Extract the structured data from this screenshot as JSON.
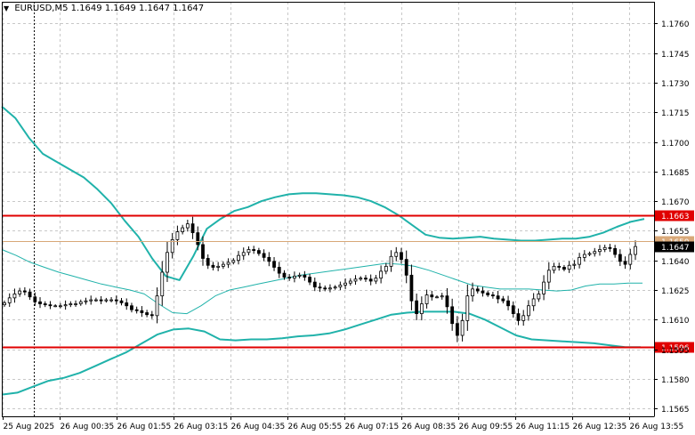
{
  "header": {
    "symbol": "EURUSD,M5",
    "ohlc": "1.1649 1.1649 1.1647 1.1647"
  },
  "colors": {
    "candle": "#000000",
    "bollinger": "#20b2aa",
    "level_line": "#e00000",
    "bid_line": "#d8a878",
    "grid": "#c8c8c8"
  },
  "chart_data": {
    "type": "candlestick",
    "symbol": "EURUSD",
    "timeframe": "M5",
    "y_ticks": [
      "1.1760",
      "1.1745",
      "1.1730",
      "1.1715",
      "1.1700",
      "1.1685",
      "1.1670",
      "1.1655",
      "1.1640",
      "1.1625",
      "1.1610",
      "1.1595",
      "1.1580",
      "1.1565"
    ],
    "ylim": [
      1.1561,
      1.1771
    ],
    "x_ticks": [
      "25 Aug 2025",
      "26 Aug 00:35",
      "26 Aug 01:55",
      "26 Aug 03:15",
      "26 Aug 04:35",
      "26 Aug 05:55",
      "26 Aug 07:15",
      "26 Aug 08:35",
      "26 Aug 09:55",
      "26 Aug 11:15",
      "26 Aug 12:35",
      "26 Aug 13:55"
    ],
    "grid": true,
    "current_price": {
      "value": 1.1647,
      "label": "1.1647"
    },
    "bid_line": {
      "value": 1.165,
      "label": "1.1650"
    },
    "horizontal_levels": [
      {
        "value": 1.1663,
        "label": "1.1663"
      },
      {
        "value": 1.1596,
        "label": "1.1596"
      }
    ],
    "candles": [
      1.16185,
      1.1621,
      1.1623,
      1.16245,
      1.1624,
      1.16215,
      1.1619,
      1.1618,
      1.16175,
      1.1617,
      1.1617,
      1.1617,
      1.16175,
      1.1618,
      1.1618,
      1.1619,
      1.16195,
      1.162,
      1.162,
      1.16195,
      1.162,
      1.162,
      1.16195,
      1.16185,
      1.1617,
      1.1615,
      1.16145,
      1.16135,
      1.16125,
      1.1612,
      1.1622,
      1.1634,
      1.1644,
      1.16505,
      1.16545,
      1.16565,
      1.16585,
      1.1654,
      1.1648,
      1.1641,
      1.16375,
      1.16365,
      1.1637,
      1.1638,
      1.1639,
      1.164,
      1.16425,
      1.1644,
      1.16455,
      1.1645,
      1.16435,
      1.16415,
      1.16395,
      1.16365,
      1.16335,
      1.16315,
      1.1631,
      1.1632,
      1.16325,
      1.16315,
      1.1629,
      1.16265,
      1.1626,
      1.16255,
      1.1626,
      1.16265,
      1.16275,
      1.16285,
      1.16295,
      1.16305,
      1.1631,
      1.16305,
      1.16295,
      1.1631,
      1.16345,
      1.1637,
      1.1642,
      1.1644,
      1.16405,
      1.16325,
      1.16195,
      1.1613,
      1.1618,
      1.16225,
      1.16215,
      1.16215,
      1.1622,
      1.16165,
      1.1608,
      1.1602,
      1.16095,
      1.1622,
      1.16255,
      1.16245,
      1.16235,
      1.16225,
      1.1622,
      1.16205,
      1.16195,
      1.1617,
      1.1613,
      1.16095,
      1.1612,
      1.1617,
      1.16205,
      1.1623,
      1.1629,
      1.1635,
      1.1637,
      1.16365,
      1.16355,
      1.16375,
      1.1638,
      1.16415,
      1.1643,
      1.16435,
      1.16445,
      1.16455,
      1.16465,
      1.1646,
      1.1643,
      1.16395,
      1.1638,
      1.1643,
      1.1647
    ],
    "bollinger_upper": [
      1.1718,
      1.1712,
      1.1702,
      1.1694,
      1.169,
      1.1686,
      1.1682,
      1.1676,
      1.1669,
      1.166,
      1.1652,
      1.1641,
      1.1632,
      1.163,
      1.1642,
      1.1656,
      1.1661,
      1.1665,
      1.1667,
      1.167,
      1.1672,
      1.16735,
      1.1674,
      1.1674,
      1.16735,
      1.1673,
      1.1672,
      1.167,
      1.1667,
      1.1663,
      1.1658,
      1.1653,
      1.16515,
      1.1651,
      1.16515,
      1.1652,
      1.1651,
      1.16505,
      1.165,
      1.165,
      1.16505,
      1.1651,
      1.1651,
      1.1652,
      1.1654,
      1.1657,
      1.16595,
      1.1661
    ],
    "bollinger_middle": [
      1.16455,
      1.16425,
      1.1639,
      1.16365,
      1.1634,
      1.1632,
      1.163,
      1.1628,
      1.16265,
      1.1625,
      1.1623,
      1.1618,
      1.16135,
      1.1613,
      1.1617,
      1.1622,
      1.1625,
      1.16265,
      1.1628,
      1.16295,
      1.1631,
      1.16325,
      1.16335,
      1.16345,
      1.16355,
      1.16365,
      1.16375,
      1.16385,
      1.1638,
      1.1637,
      1.1635,
      1.16325,
      1.163,
      1.16275,
      1.16265,
      1.16255,
      1.16255,
      1.16255,
      1.1625,
      1.16245,
      1.1625,
      1.1627,
      1.1628,
      1.1628,
      1.16285,
      1.16285
    ],
    "bollinger_lower": [
      1.1572,
      1.1573,
      1.1576,
      1.1579,
      1.15805,
      1.1583,
      1.15865,
      1.159,
      1.15935,
      1.1598,
      1.16025,
      1.1605,
      1.16055,
      1.1604,
      1.16,
      1.15995,
      1.16,
      1.16,
      1.16005,
      1.16015,
      1.1602,
      1.1603,
      1.1605,
      1.16075,
      1.161,
      1.16125,
      1.16135,
      1.1614,
      1.1614,
      1.1614,
      1.1613,
      1.161,
      1.1606,
      1.1602,
      1.16,
      1.15995,
      1.1599,
      1.15985,
      1.1598,
      1.1597,
      1.1596,
      1.1596
    ]
  }
}
